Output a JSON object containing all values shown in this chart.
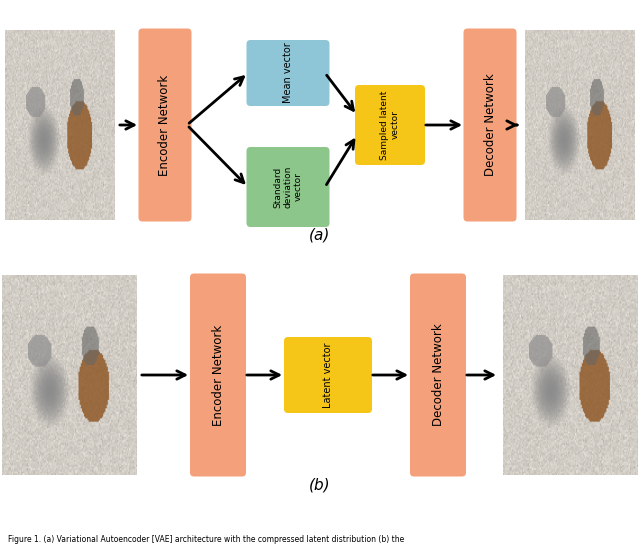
{
  "fig_width": 6.4,
  "fig_height": 5.5,
  "bg_color": "#ffffff",
  "salmon_color": "#F4A07A",
  "blue_color": "#8EC6D8",
  "green_color": "#8DC68B",
  "yellow_color": "#F5C518",
  "caption_a": "(a)",
  "caption_b": "(b)",
  "caption_fontsize": 10,
  "network_text_fontsize": 8.5,
  "vector_text_fontsize": 6.5,
  "footnote": "Figure 1. (a) Variational Autoencoder [VAE] architecture with the compressed latent distribution (b) the"
}
